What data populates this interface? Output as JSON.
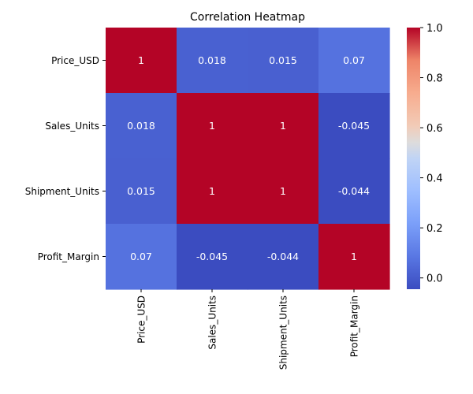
{
  "chart_data": {
    "type": "heatmap",
    "title": "Correlation Heatmap",
    "xlabel": "",
    "ylabel": "",
    "rows": [
      "Price_USD",
      "Sales_Units",
      "Shipment_Units",
      "Profit_Margin"
    ],
    "columns": [
      "Price_USD",
      "Sales_Units",
      "Shipment_Units",
      "Profit_Margin"
    ],
    "values": [
      [
        1,
        0.018,
        0.015,
        0.07
      ],
      [
        0.018,
        1,
        1,
        -0.045
      ],
      [
        0.015,
        1,
        1,
        -0.044
      ],
      [
        0.07,
        -0.045,
        -0.044,
        1
      ]
    ],
    "cell_labels": [
      [
        "1",
        "0.018",
        "0.015",
        "0.07"
      ],
      [
        "0.018",
        "1",
        "1",
        "-0.045"
      ],
      [
        "0.015",
        "1",
        "1",
        "-0.044"
      ],
      [
        "0.07",
        "-0.045",
        "-0.044",
        "1"
      ]
    ],
    "colormap": "coolwarm",
    "colorbar": {
      "vmin": -0.045,
      "vmax": 1,
      "ticks": [
        0.0,
        0.2,
        0.4,
        0.6,
        0.8,
        1.0
      ],
      "tick_labels": [
        "0.0",
        "0.2",
        "0.4",
        "0.6",
        "0.8",
        "1.0"
      ],
      "placement": "right"
    }
  }
}
